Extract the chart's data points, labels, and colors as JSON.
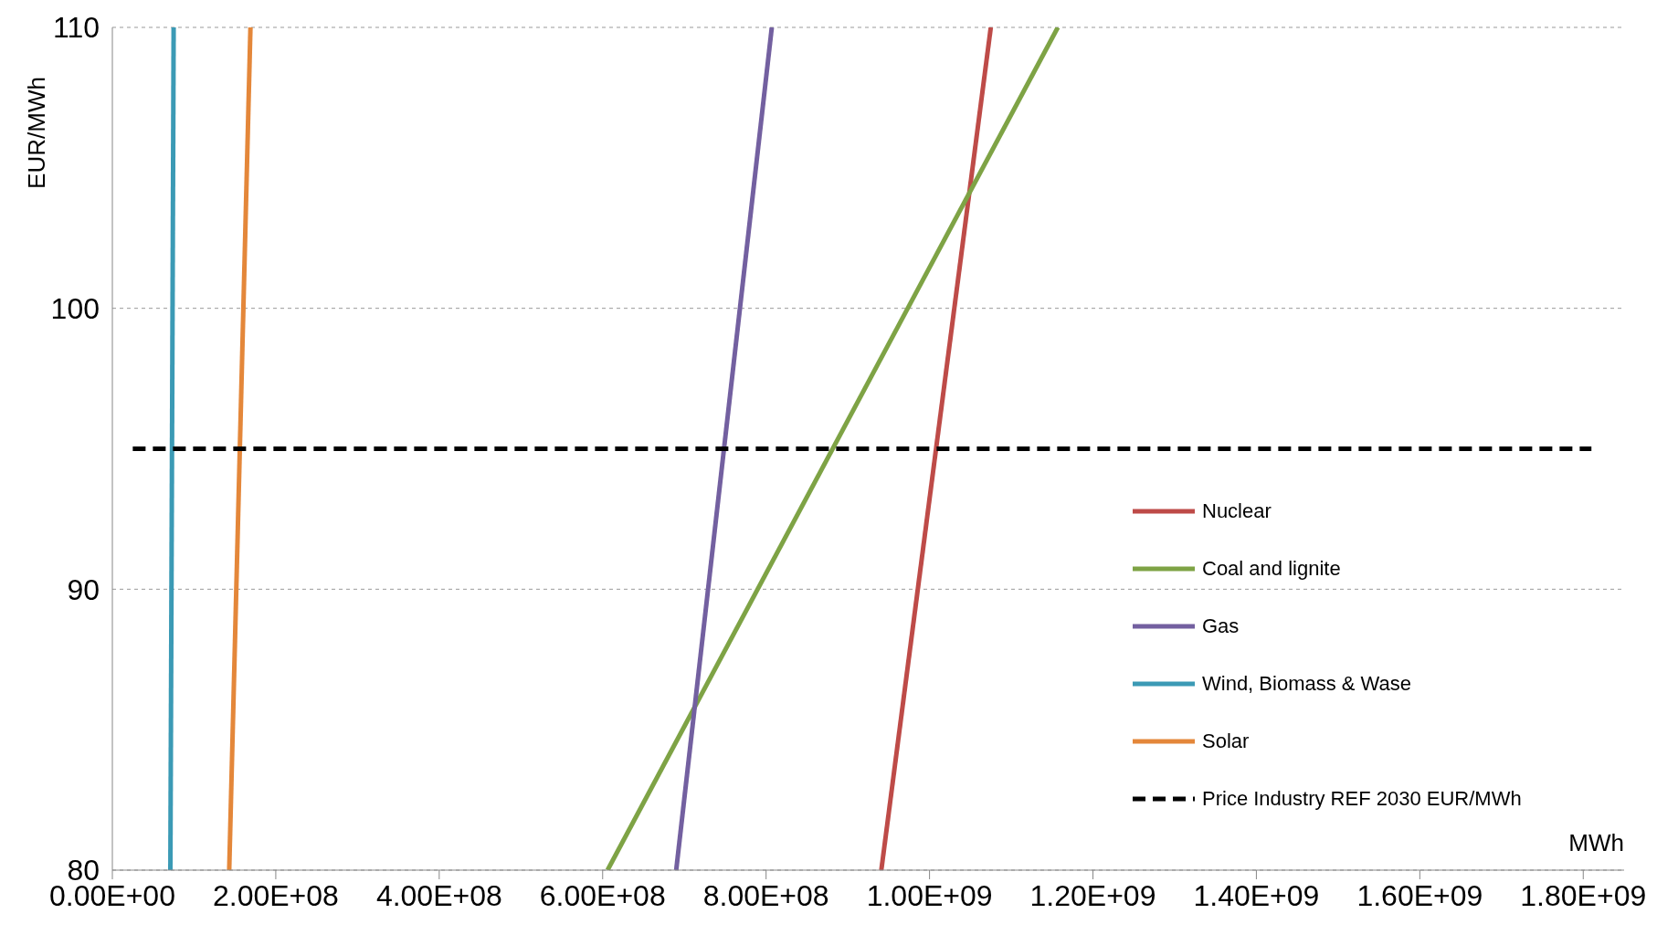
{
  "chart_data": {
    "type": "line",
    "xlabel": "MWh",
    "ylabel": "EUR/MWh",
    "xlim": [
      0,
      1850000000
    ],
    "xticks": [
      {
        "value": 0,
        "label": "0.00E+00"
      },
      {
        "value": 200000000,
        "label": "2.00E+08"
      },
      {
        "value": 400000000,
        "label": "4.00E+08"
      },
      {
        "value": 600000000,
        "label": "6.00E+08"
      },
      {
        "value": 800000000,
        "label": "8.00E+08"
      },
      {
        "value": 1000000000,
        "label": "1.00E+09"
      },
      {
        "value": 1200000000,
        "label": "1.20E+09"
      },
      {
        "value": 1400000000,
        "label": "1.40E+09"
      },
      {
        "value": 1600000000,
        "label": "1.60E+09"
      },
      {
        "value": 1800000000,
        "label": "1.80E+09"
      }
    ],
    "ylim": [
      80,
      110
    ],
    "yticks": [
      80,
      90,
      100,
      110
    ],
    "grid": "y",
    "legend": "right",
    "marker": "none",
    "series": [
      {
        "name": "Nuclear",
        "color": "#be4b48",
        "x": [
          941000000,
          1075000000
        ],
        "values": [
          80,
          110
        ]
      },
      {
        "name": "Coal and lignite",
        "color": "#7ea345",
        "x": [
          606000000,
          1157000000
        ],
        "values": [
          80,
          110
        ]
      },
      {
        "name": "Gas",
        "color": "#7360a0",
        "x": [
          690000000,
          807000000
        ],
        "values": [
          80,
          110
        ]
      },
      {
        "name": "Wind, Biomass & Wase",
        "color": "#3b9ab5",
        "x": [
          71000000,
          75000000
        ],
        "values": [
          80,
          110
        ]
      },
      {
        "name": "Solar",
        "color": "#e4873a",
        "x": [
          143000000,
          169000000
        ],
        "values": [
          80,
          110
        ]
      },
      {
        "name": "Price Industry REF 2030 EUR/MWh",
        "color": "#000000",
        "line_style": "dashed",
        "x": [
          25000000,
          1810000000
        ],
        "values": [
          95,
          95
        ]
      }
    ]
  }
}
